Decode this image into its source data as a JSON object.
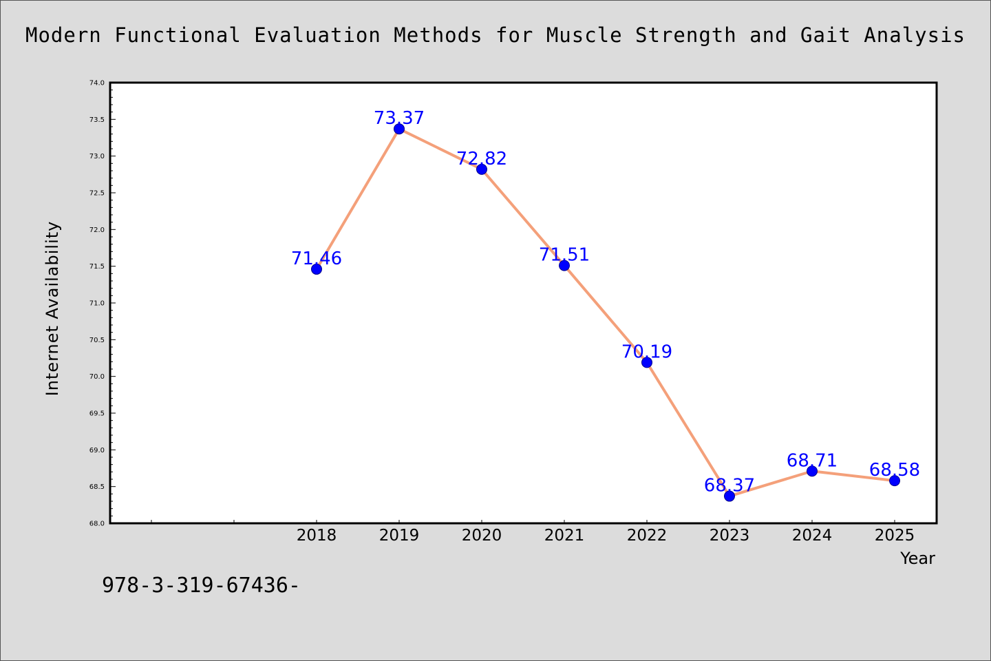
{
  "chart_data": {
    "type": "line",
    "title": "Modern Functional Evaluation Methods for Muscle Strength and Gait Analysis",
    "xlabel": "Year",
    "ylabel": "Internet Availability",
    "categories": [
      "",
      "",
      "2018",
      "2019",
      "2020",
      "2021",
      "2022",
      "2023",
      "2024",
      "2025"
    ],
    "series": [
      {
        "values": [
          null,
          null,
          71.46,
          73.37,
          72.82,
          71.51,
          70.19,
          68.37,
          68.71,
          68.58
        ]
      }
    ],
    "data_labels": [
      "",
      "",
      "71.46",
      "73.37",
      "72.82",
      "71.51",
      "70.19",
      "68.37",
      "68.71",
      "68.58"
    ],
    "ylim": [
      68.0,
      74.0
    ],
    "yticks": [
      "68.0",
      "68.5",
      "69.0",
      "69.5",
      "70.0",
      "70.5",
      "71.0",
      "71.5",
      "72.0",
      "72.5",
      "73.0",
      "73.5",
      "74.0"
    ],
    "grid": false,
    "legend": "none",
    "colors": {
      "line": "#f4a07a",
      "marker": "#0000ff",
      "label": "#0000ff",
      "background": "#dcdcdc",
      "plot_background": "#ffffff"
    }
  },
  "footnote": "978-3-319-67436-"
}
